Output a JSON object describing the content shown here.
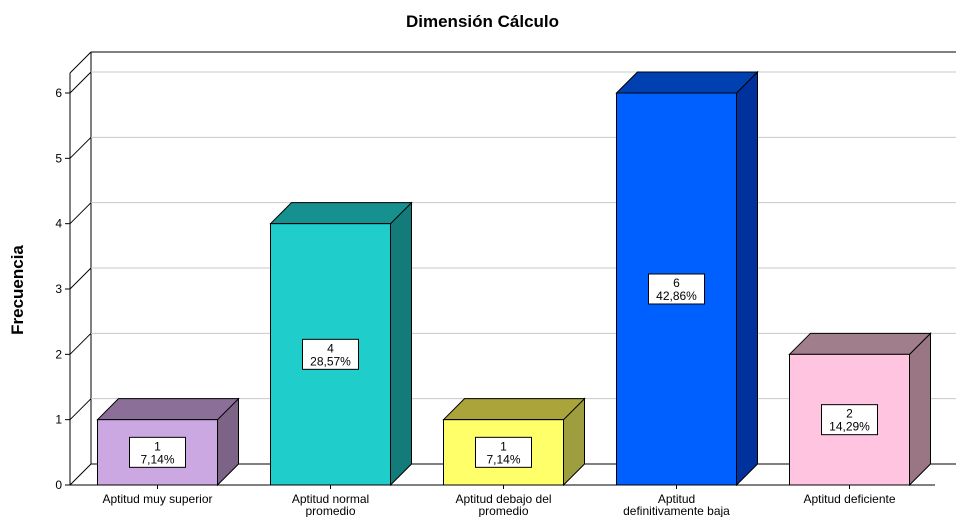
{
  "chart_data": {
    "type": "bar",
    "title": "Dimensión Cálculo",
    "xlabel": "",
    "ylabel": "Frecuencia",
    "ylim": [
      0,
      6
    ],
    "yticks": [
      "0",
      "1",
      "2",
      "3",
      "4",
      "5",
      "6"
    ],
    "grid": true,
    "categories": [
      "Aptitud muy superior",
      "Aptitud normal promedio",
      "Aptitud debajo del promedio",
      "Aptitud definitivamente baja",
      "Aptitud deficiente"
    ],
    "category_lines": [
      [
        "Aptitud muy superior"
      ],
      [
        "Aptitud normal",
        "promedio"
      ],
      [
        "Aptitud debajo del",
        "promedio"
      ],
      [
        "Aptitud",
        "definitivamente baja"
      ],
      [
        "Aptitud deficiente"
      ]
    ],
    "values": [
      1,
      4,
      1,
      6,
      2
    ],
    "labels": [
      [
        "1",
        "7,14%"
      ],
      [
        "4",
        "28,57%"
      ],
      [
        "1",
        "7,14%"
      ],
      [
        "6",
        "42,86%"
      ],
      [
        "2",
        "14,29%"
      ]
    ],
    "colors": [
      {
        "front": "#cba8e2",
        "side": "#7d6486",
        "top": "#8b6f99"
      },
      {
        "front": "#1fcdcb",
        "side": "#137b79",
        "top": "#16918f"
      },
      {
        "front": "#ffff6a",
        "side": "#9e9e3f",
        "top": "#aaa43a"
      },
      {
        "front": "#0060ff",
        "side": "#00329e",
        "top": "#0040b0"
      },
      {
        "front": "#ffc4e0",
        "side": "#9a7583",
        "top": "#a07e8c"
      }
    ]
  }
}
